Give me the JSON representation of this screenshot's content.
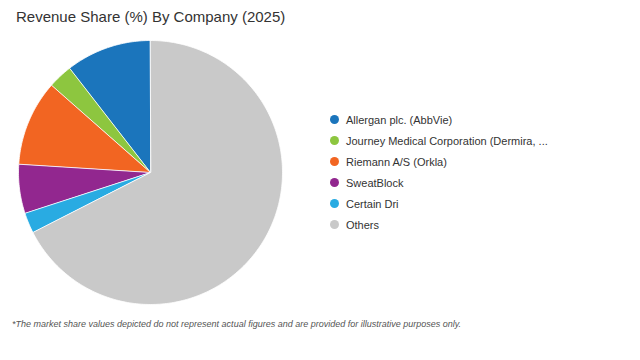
{
  "chart_data": {
    "type": "pie",
    "title": "Revenue Share (%) By Company (2025)",
    "categories": [
      "Allergan plc. (AbbVie)",
      "Journey Medical Corporation (Dermira, ...",
      "Riemann A/S (Orkla)",
      "SweatBlock",
      "Certain Dri",
      "Others"
    ],
    "values": [
      10.5,
      3.0,
      10.5,
      6.0,
      2.5,
      67.5
    ],
    "colors": [
      "#1b75bc",
      "#8dc63f",
      "#f26522",
      "#92278f",
      "#29abe2",
      "#c9c9c9"
    ],
    "legend": "right",
    "annotations": [
      "*The market share values depicted do not represent actual figures and are provided for illustrative purposes only."
    ]
  }
}
